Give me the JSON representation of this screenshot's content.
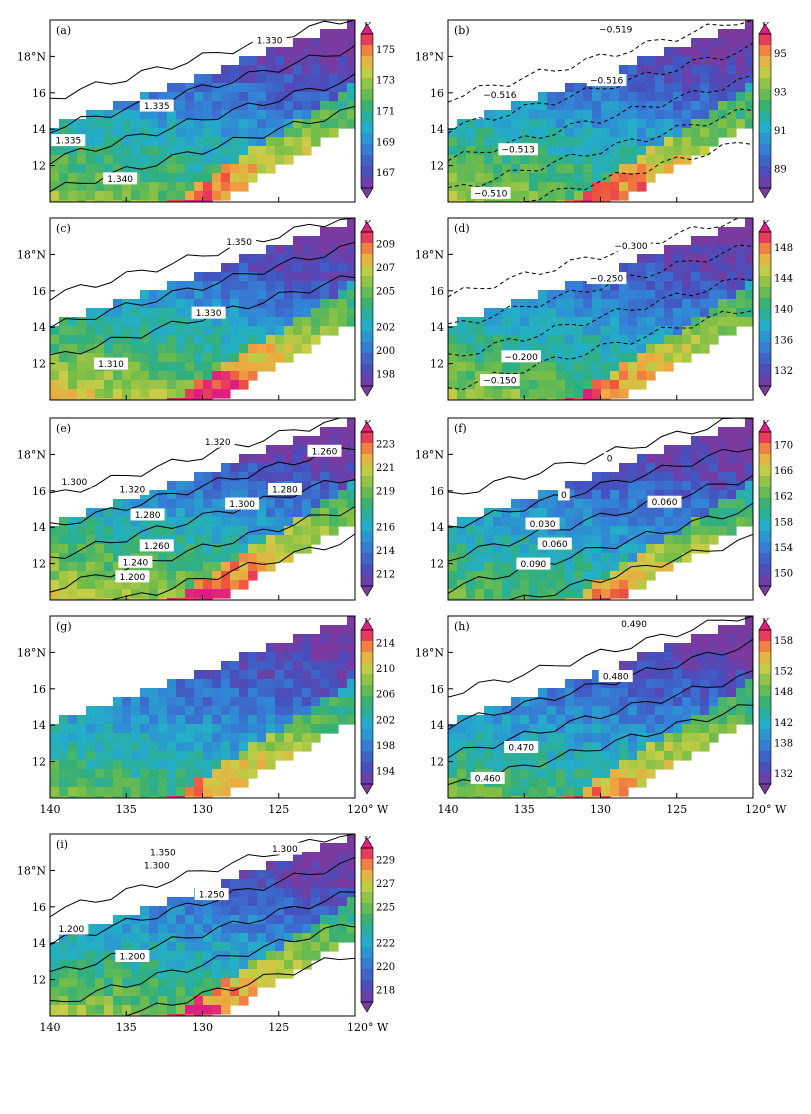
{
  "chart_data": [
    {
      "type": "heatmap",
      "panel_label": "(a)",
      "unit": "K",
      "colorbar_ticks": [
        "175",
        "173",
        "171",
        "169",
        "167"
      ],
      "colorbar_range": [
        166,
        176
      ],
      "colormap": "blue_to_red",
      "contour_style": "solid",
      "contour_labels": [
        "1.330",
        "1.335",
        "1.335",
        "1.340"
      ],
      "y_ticks": [
        "18°N",
        "16",
        "14",
        "12"
      ],
      "x_ticks": [],
      "lat_range": [
        10,
        20
      ],
      "lon_range": [
        -140,
        -120
      ]
    },
    {
      "type": "heatmap",
      "panel_label": "(b)",
      "unit": "K",
      "colorbar_ticks": [
        "95",
        "93",
        "91",
        "89"
      ],
      "colorbar_range": [
        88,
        96
      ],
      "colormap": "blue_to_red",
      "contour_style": "dashed",
      "contour_labels": [
        "−0.519",
        "−0.516",
        "−0.516",
        "−0.513",
        "−0.510"
      ],
      "y_ticks": [
        "18°N",
        "16",
        "14",
        "12"
      ],
      "x_ticks": [],
      "lat_range": [
        10,
        20
      ],
      "lon_range": [
        -140,
        -120
      ]
    },
    {
      "type": "heatmap",
      "panel_label": "(c)",
      "unit": "K",
      "colorbar_ticks": [
        "209",
        "207",
        "205",
        "202",
        "200",
        "198"
      ],
      "colorbar_range": [
        197,
        210
      ],
      "colormap": "blue_to_red",
      "contour_style": "solid",
      "contour_labels": [
        "1.350",
        "1.330",
        "1.310"
      ],
      "y_ticks": [
        "18°N",
        "16",
        "14",
        "12"
      ],
      "x_ticks": [],
      "lat_range": [
        10,
        20
      ],
      "lon_range": [
        -140,
        -120
      ]
    },
    {
      "type": "heatmap",
      "panel_label": "(d)",
      "unit": "K",
      "colorbar_ticks": [
        "148",
        "144",
        "140",
        "136",
        "132"
      ],
      "colorbar_range": [
        130,
        150
      ],
      "colormap": "blue_to_red",
      "contour_style": "dashed",
      "contour_labels": [
        "−0.300",
        "−0.250",
        "−0.200",
        "−0.150"
      ],
      "y_ticks": [
        "18°N",
        "16",
        "14",
        "12"
      ],
      "x_ticks": [],
      "lat_range": [
        10,
        20
      ],
      "lon_range": [
        -140,
        -120
      ]
    },
    {
      "type": "heatmap",
      "panel_label": "(e)",
      "unit": "K",
      "colorbar_ticks": [
        "223",
        "221",
        "219",
        "216",
        "214",
        "212"
      ],
      "colorbar_range": [
        211,
        224
      ],
      "colormap": "blue_to_red",
      "contour_style": "solid",
      "contour_labels": [
        "1.320",
        "1.260",
        "1.300",
        "1.320",
        "1.280",
        "1.300",
        "1.280",
        "1.260",
        "1.240",
        "1.200"
      ],
      "y_ticks": [
        "18°N",
        "16",
        "14",
        "12"
      ],
      "x_ticks": [],
      "lat_range": [
        10,
        20
      ],
      "lon_range": [
        -140,
        -120
      ]
    },
    {
      "type": "heatmap",
      "panel_label": "(f)",
      "unit": "K",
      "colorbar_ticks": [
        "170",
        "166",
        "162",
        "158",
        "154",
        "150"
      ],
      "colorbar_range": [
        148,
        172
      ],
      "colormap": "blue_to_red",
      "contour_style": "solid",
      "contour_labels": [
        "0",
        "0",
        "0.060",
        "0.030",
        "0.060",
        "0.090"
      ],
      "y_ticks": [
        "18°N",
        "16",
        "14",
        "12"
      ],
      "x_ticks": [],
      "lat_range": [
        10,
        20
      ],
      "lon_range": [
        -140,
        -120
      ]
    },
    {
      "type": "heatmap",
      "panel_label": "(g)",
      "unit": "K",
      "colorbar_ticks": [
        "214",
        "210",
        "206",
        "202",
        "198",
        "194"
      ],
      "colorbar_range": [
        192,
        216
      ],
      "colormap": "blue_to_red",
      "contour_style": "none",
      "contour_labels": [],
      "y_ticks": [
        "18°N",
        "16",
        "14",
        "12"
      ],
      "x_ticks": [
        "140",
        "135",
        "130",
        "125",
        "120° W"
      ],
      "lat_range": [
        10,
        20
      ],
      "lon_range": [
        -140,
        -120
      ]
    },
    {
      "type": "heatmap",
      "panel_label": "(h)",
      "unit": "K",
      "colorbar_ticks": [
        "158",
        "152",
        "148",
        "142",
        "138",
        "132"
      ],
      "colorbar_range": [
        130,
        160
      ],
      "colormap": "blue_to_red",
      "contour_style": "solid",
      "contour_labels": [
        "0.490",
        "0.480",
        "0.470",
        "0.460"
      ],
      "y_ticks": [
        "18°N",
        "16",
        "14",
        "12"
      ],
      "x_ticks": [
        "140",
        "135",
        "130",
        "125",
        "120° W"
      ],
      "lat_range": [
        10,
        20
      ],
      "lon_range": [
        -140,
        -120
      ]
    },
    {
      "type": "heatmap",
      "panel_label": "(i)",
      "unit": "K",
      "colorbar_ticks": [
        "229",
        "227",
        "225",
        "222",
        "220",
        "218"
      ],
      "colorbar_range": [
        217,
        230
      ],
      "colormap": "blue_to_red",
      "contour_style": "solid",
      "contour_labels": [
        "1.300",
        "1.350",
        "1.300",
        "1.250",
        "1.200",
        "1.200"
      ],
      "y_ticks": [
        "18°N",
        "16",
        "14",
        "12"
      ],
      "x_ticks": [
        "140",
        "135",
        "130",
        "125",
        "120° W"
      ],
      "lat_range": [
        10,
        20
      ],
      "lon_range": [
        -140,
        -120
      ]
    }
  ]
}
